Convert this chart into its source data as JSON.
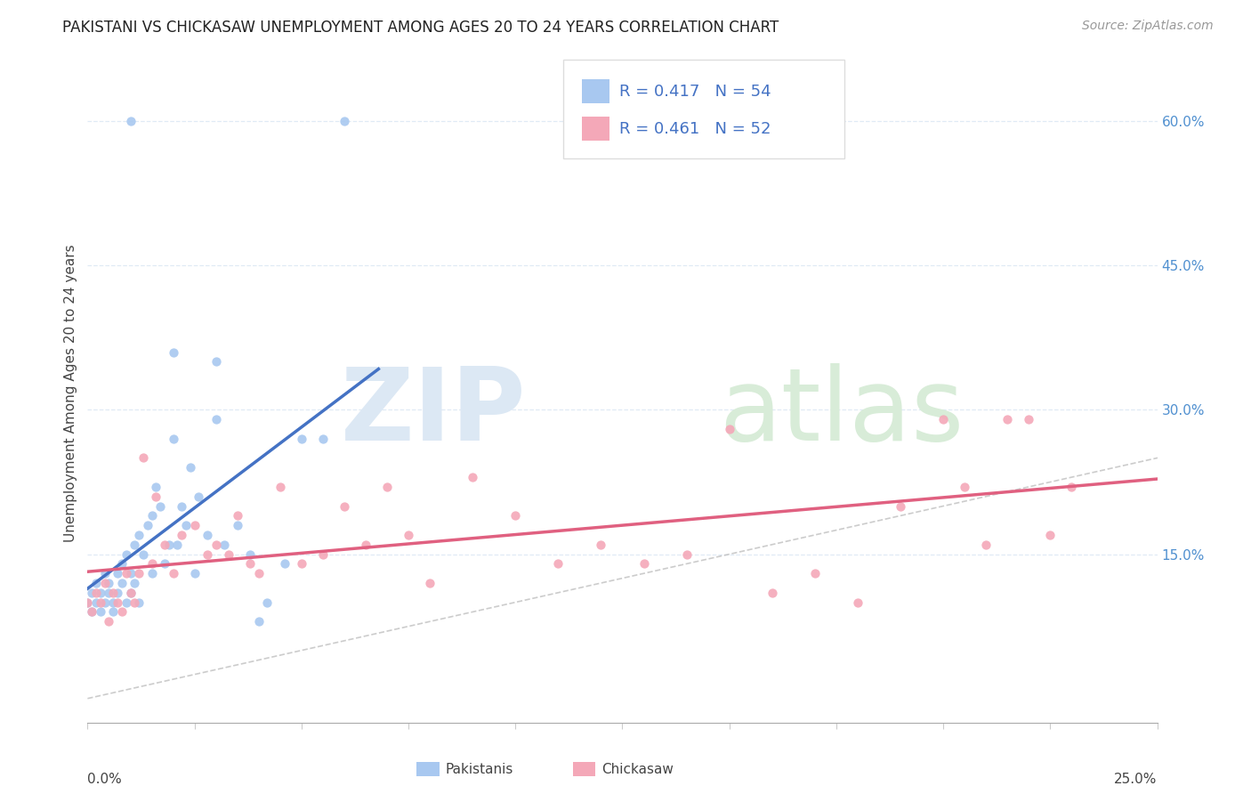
{
  "title": "PAKISTANI VS CHICKASAW UNEMPLOYMENT AMONG AGES 20 TO 24 YEARS CORRELATION CHART",
  "source": "Source: ZipAtlas.com",
  "ylabel": "Unemployment Among Ages 20 to 24 years",
  "xmin": 0.0,
  "xmax": 0.25,
  "ymin": -0.025,
  "ymax": 0.66,
  "right_yticks": [
    0.15,
    0.3,
    0.45,
    0.6
  ],
  "right_yticklabels": [
    "15.0%",
    "30.0%",
    "45.0%",
    "60.0%"
  ],
  "legend_text_color": "#4472C4",
  "blue_color": "#A8C8F0",
  "pink_color": "#F4A8B8",
  "blue_line_color": "#4472C4",
  "pink_line_color": "#E06080",
  "diag_color": "#BBBBBB",
  "grid_color": "#DCE8F4",
  "watermark_zip_color": "#DCE8F4",
  "watermark_atlas_color": "#D8ECD8",
  "title_color": "#222222",
  "source_color": "#999999",
  "axis_label_color": "#444444",
  "right_tick_color": "#5090D0",
  "pakistani_x": [
    0.0,
    0.001,
    0.001,
    0.002,
    0.002,
    0.003,
    0.003,
    0.004,
    0.004,
    0.005,
    0.005,
    0.006,
    0.006,
    0.007,
    0.007,
    0.008,
    0.008,
    0.009,
    0.009,
    0.01,
    0.01,
    0.011,
    0.011,
    0.012,
    0.012,
    0.013,
    0.014,
    0.015,
    0.015,
    0.016,
    0.017,
    0.018,
    0.019,
    0.02,
    0.021,
    0.022,
    0.023,
    0.024,
    0.025,
    0.026,
    0.028,
    0.03,
    0.032,
    0.035,
    0.038,
    0.042,
    0.046,
    0.05,
    0.055,
    0.06,
    0.01,
    0.02,
    0.03,
    0.04
  ],
  "pakistani_y": [
    0.1,
    0.09,
    0.11,
    0.1,
    0.12,
    0.11,
    0.09,
    0.13,
    0.1,
    0.11,
    0.12,
    0.1,
    0.09,
    0.11,
    0.13,
    0.12,
    0.14,
    0.1,
    0.15,
    0.11,
    0.13,
    0.16,
    0.12,
    0.17,
    0.1,
    0.15,
    0.18,
    0.19,
    0.13,
    0.22,
    0.2,
    0.14,
    0.16,
    0.27,
    0.16,
    0.2,
    0.18,
    0.24,
    0.13,
    0.21,
    0.17,
    0.29,
    0.16,
    0.18,
    0.15,
    0.1,
    0.14,
    0.27,
    0.27,
    0.6,
    0.6,
    0.36,
    0.35,
    0.08
  ],
  "chickasaw_x": [
    0.0,
    0.001,
    0.002,
    0.003,
    0.004,
    0.005,
    0.006,
    0.007,
    0.008,
    0.009,
    0.01,
    0.011,
    0.012,
    0.013,
    0.015,
    0.016,
    0.018,
    0.02,
    0.022,
    0.025,
    0.028,
    0.03,
    0.033,
    0.035,
    0.038,
    0.04,
    0.045,
    0.05,
    0.055,
    0.06,
    0.065,
    0.07,
    0.075,
    0.08,
    0.09,
    0.1,
    0.11,
    0.12,
    0.13,
    0.14,
    0.15,
    0.16,
    0.17,
    0.18,
    0.19,
    0.2,
    0.205,
    0.21,
    0.215,
    0.22,
    0.225,
    0.23
  ],
  "chickasaw_y": [
    0.1,
    0.09,
    0.11,
    0.1,
    0.12,
    0.08,
    0.11,
    0.1,
    0.09,
    0.13,
    0.11,
    0.1,
    0.13,
    0.25,
    0.14,
    0.21,
    0.16,
    0.13,
    0.17,
    0.18,
    0.15,
    0.16,
    0.15,
    0.19,
    0.14,
    0.13,
    0.22,
    0.14,
    0.15,
    0.2,
    0.16,
    0.22,
    0.17,
    0.12,
    0.23,
    0.19,
    0.14,
    0.16,
    0.14,
    0.15,
    0.28,
    0.11,
    0.13,
    0.1,
    0.2,
    0.29,
    0.22,
    0.16,
    0.29,
    0.29,
    0.17,
    0.22
  ]
}
